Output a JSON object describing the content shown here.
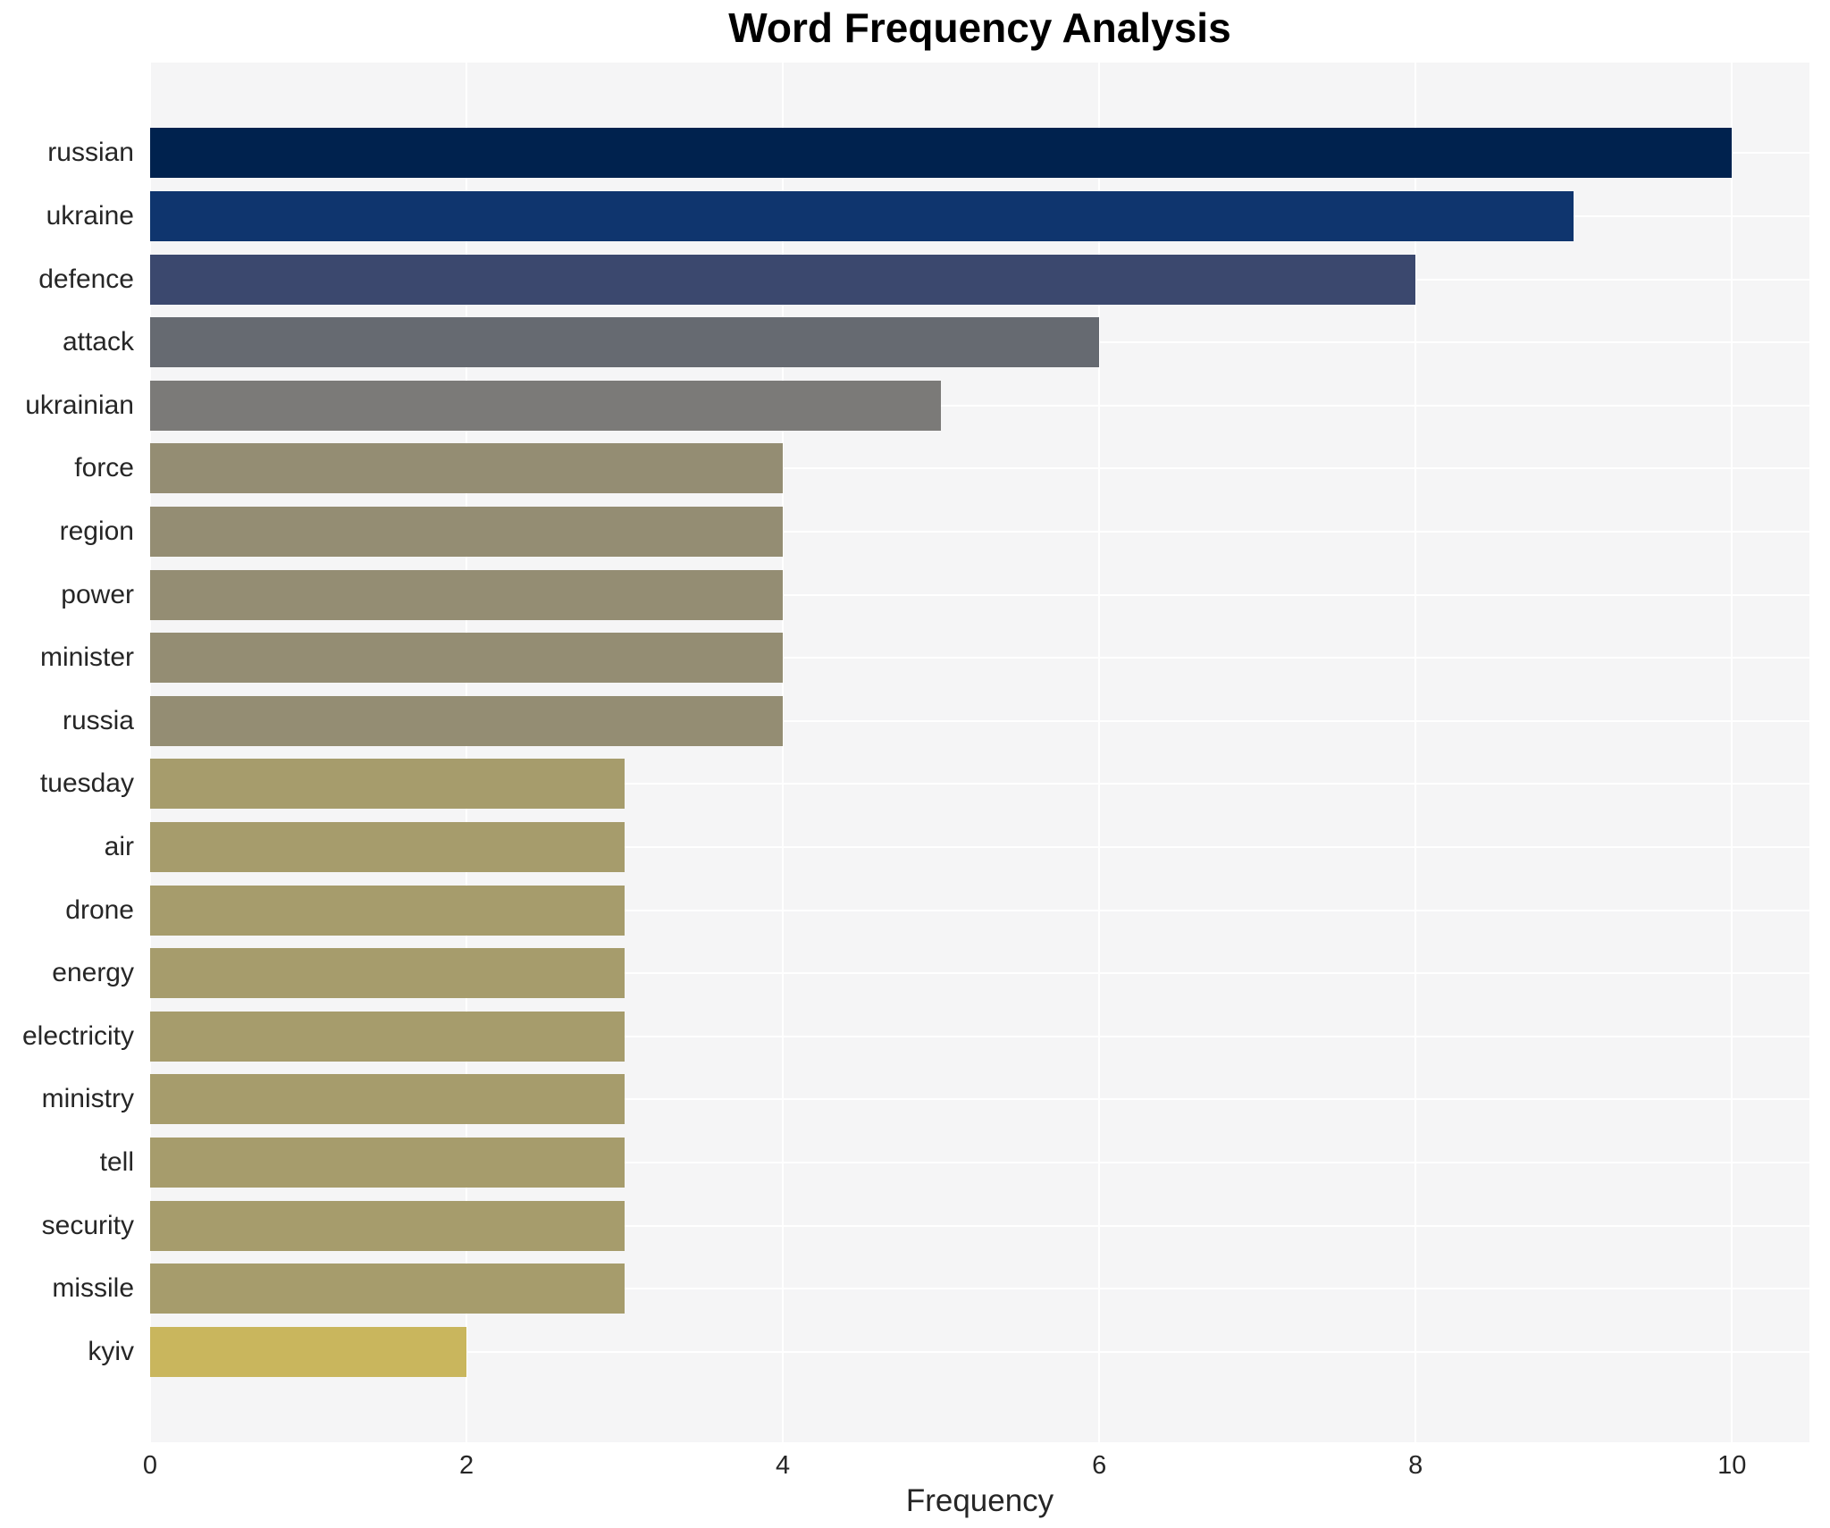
{
  "chart_data": {
    "type": "bar",
    "orientation": "horizontal",
    "title": "Word Frequency Analysis",
    "xlabel": "Frequency",
    "ylabel": "",
    "categories": [
      "russian",
      "ukraine",
      "defence",
      "attack",
      "ukrainian",
      "force",
      "region",
      "power",
      "minister",
      "russia",
      "tuesday",
      "air",
      "drone",
      "energy",
      "electricity",
      "ministry",
      "tell",
      "security",
      "missile",
      "kyiv"
    ],
    "values": [
      10,
      9,
      8,
      6,
      5,
      4,
      4,
      4,
      4,
      4,
      3,
      3,
      3,
      3,
      3,
      3,
      3,
      3,
      3,
      2
    ],
    "bar_colors": [
      "#00224e",
      "#0f356e",
      "#3b486e",
      "#666a71",
      "#7b7a78",
      "#948d73",
      "#948d73",
      "#948d73",
      "#948d73",
      "#948d73",
      "#a69c6c",
      "#a69c6c",
      "#a69c6c",
      "#a69c6c",
      "#a69c6c",
      "#a69c6c",
      "#a69c6c",
      "#a69c6c",
      "#a69c6c",
      "#c9b65d"
    ],
    "xticks": [
      0,
      2,
      4,
      6,
      8,
      10
    ],
    "xlim": [
      0,
      10.49
    ],
    "grid": true,
    "legend": "none",
    "plot_background": "#f5f5f6",
    "gridline_color": "#ffffff",
    "tick_color": "#262626",
    "title_color": "#000000"
  }
}
